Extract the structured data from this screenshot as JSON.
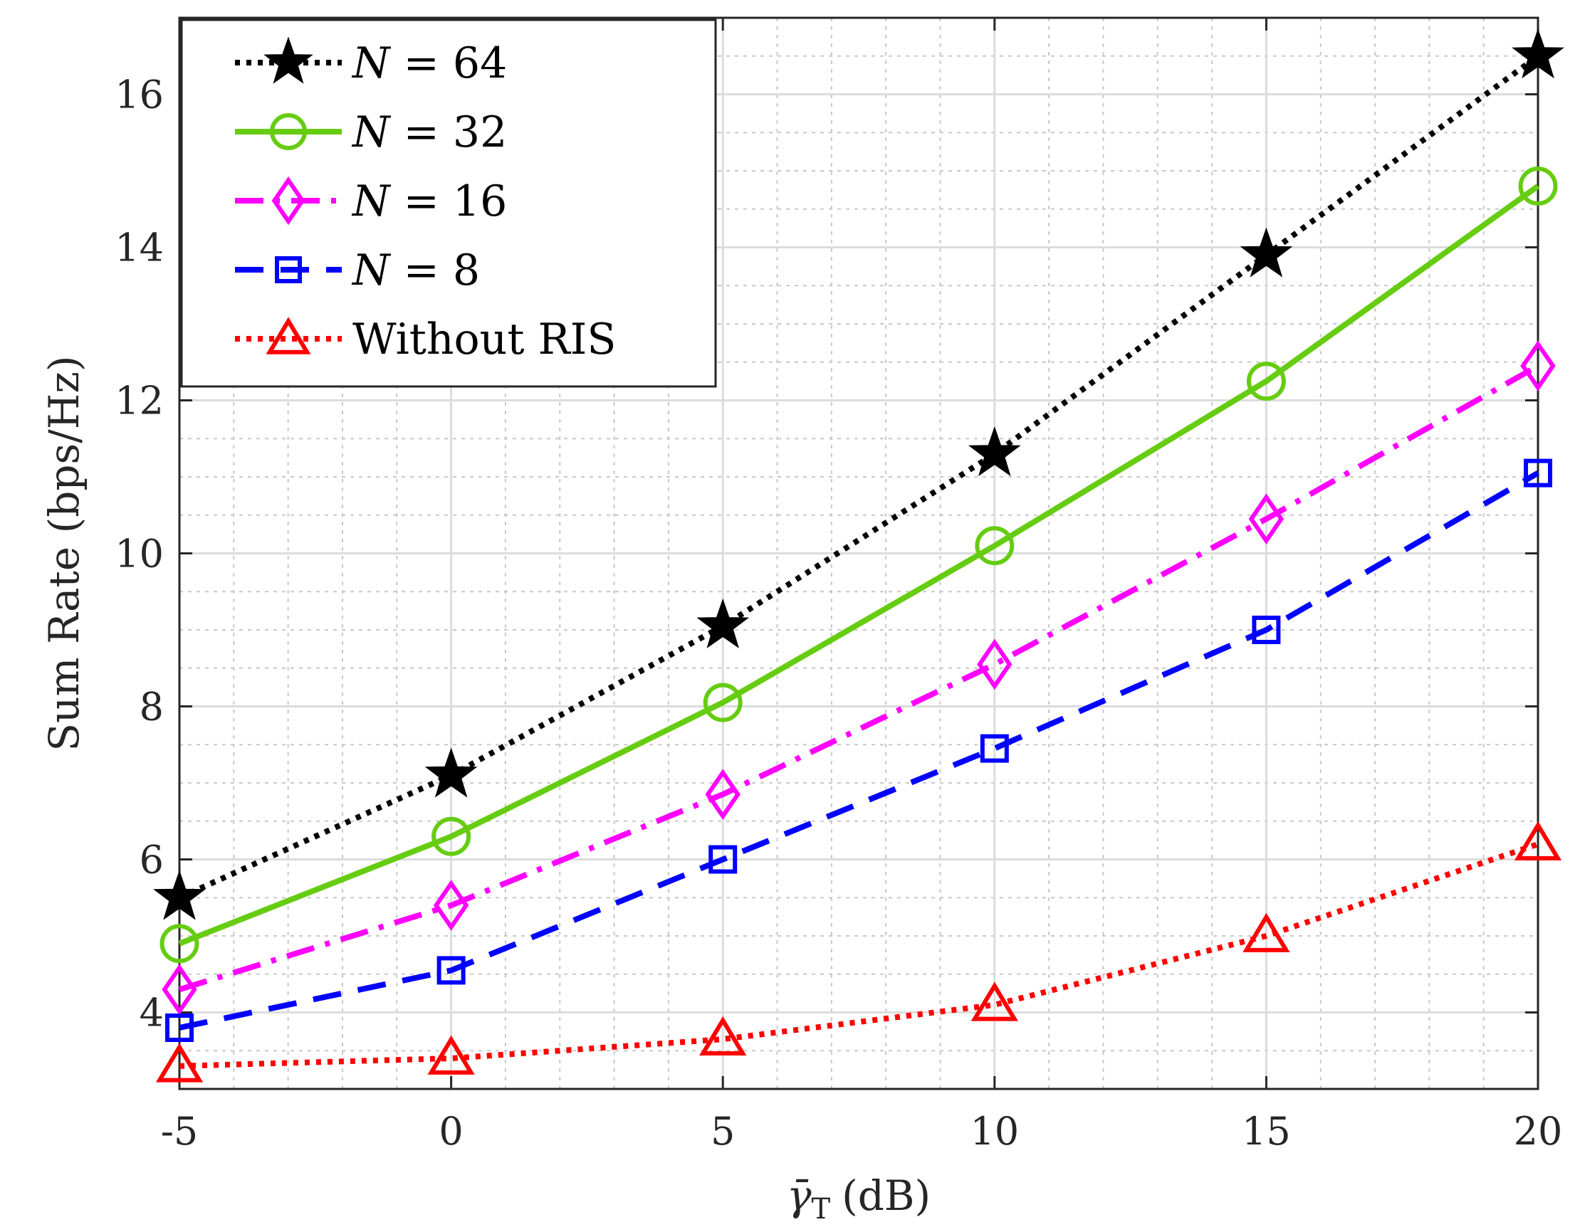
{
  "chart_data": {
    "type": "line",
    "title": "",
    "xlabel": "γ̄T (dB)",
    "xlabel_parts": {
      "symbol": "γ̄",
      "subscript": "T",
      "unit": "(dB)"
    },
    "ylabel": "Sum Rate (bps/Hz)",
    "x": [
      -5,
      0,
      5,
      10,
      15,
      20
    ],
    "xlim": [
      -5,
      20
    ],
    "ylim": [
      3.0,
      17.0
    ],
    "x_ticks": [
      -5,
      0,
      5,
      10,
      15,
      20
    ],
    "x_tick_labels": [
      "-5",
      "0",
      "5",
      "10",
      "15",
      "20"
    ],
    "y_ticks": [
      4,
      6,
      8,
      10,
      12,
      14,
      16
    ],
    "y_tick_labels": [
      "4",
      "6",
      "8",
      "10",
      "12",
      "14",
      "16"
    ],
    "grid": true,
    "minor_grid": true,
    "legend_position": "top-left",
    "series": [
      {
        "name": "N = 64",
        "legend_var": "N",
        "legend_rest": " = 64",
        "color": "#000000",
        "line": "dotted",
        "marker": "star",
        "values": [
          5.5,
          7.1,
          9.05,
          11.3,
          13.9,
          16.5
        ]
      },
      {
        "name": "N = 32",
        "legend_var": "N",
        "legend_rest": " = 32",
        "color": "#66cc11",
        "line": "solid",
        "marker": "circle",
        "values": [
          4.9,
          6.3,
          8.05,
          10.1,
          12.25,
          14.8
        ]
      },
      {
        "name": "N = 16",
        "legend_var": "N",
        "legend_rest": " = 16",
        "color": "#ff00ff",
        "line": "dashdot",
        "marker": "diamond",
        "values": [
          4.3,
          5.4,
          6.85,
          8.55,
          10.45,
          12.45
        ]
      },
      {
        "name": "N = 8",
        "legend_var": "N",
        "legend_rest": " = 8",
        "color": "#0000ff",
        "line": "dashed",
        "marker": "square",
        "values": [
          3.8,
          4.55,
          6.0,
          7.45,
          9.0,
          11.05
        ]
      },
      {
        "name": "Without RIS",
        "legend_var": "",
        "legend_rest": "Without RIS",
        "color": "#ff0000",
        "line": "dotted",
        "marker": "triangle",
        "values": [
          3.3,
          3.4,
          3.65,
          4.1,
          5.0,
          6.2
        ]
      }
    ]
  }
}
